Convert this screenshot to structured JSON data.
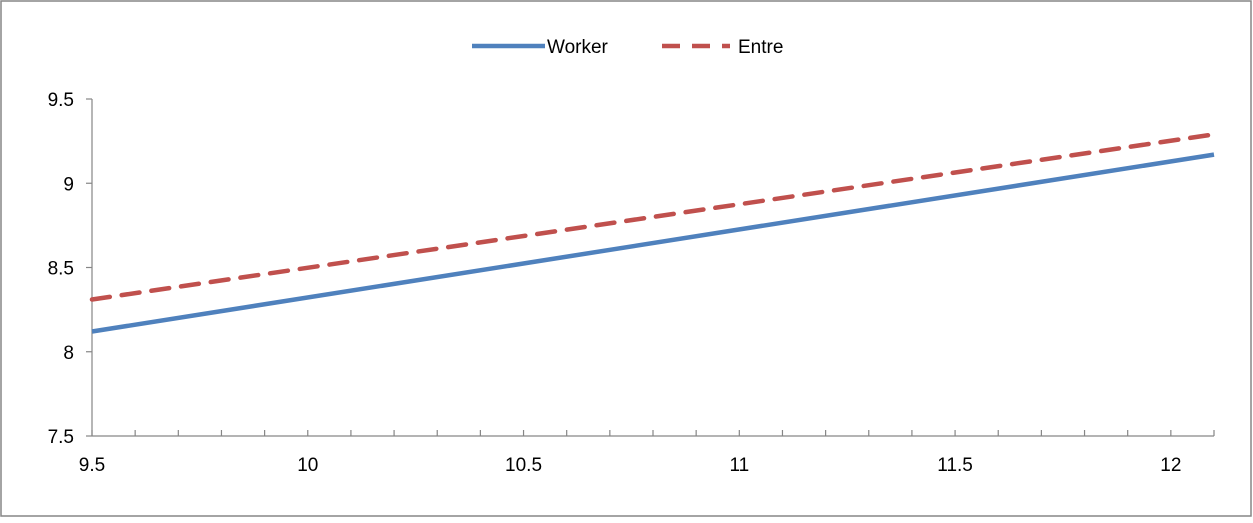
{
  "chart_data": {
    "type": "line",
    "title": "",
    "xlabel": "",
    "ylabel": "",
    "xlim": [
      9.5,
      12.1
    ],
    "ylim": [
      7.5,
      9.5
    ],
    "x_ticks": [
      9.5,
      10,
      10.5,
      11,
      11.5,
      12
    ],
    "x_tick_labels": [
      "9.5",
      "10",
      "10.5",
      "11",
      "11.5",
      "12"
    ],
    "x_minor_step": 0.1,
    "y_ticks": [
      7.5,
      8,
      8.5,
      9,
      9.5
    ],
    "y_tick_labels": [
      "7.5",
      "8",
      "8.5",
      "9",
      "9.5"
    ],
    "grid": false,
    "legend_position": "top-center",
    "series": [
      {
        "name": "Worker",
        "color": "#4f81bd",
        "style": "solid",
        "x": [
          9.5,
          12.1
        ],
        "y": [
          8.12,
          9.17
        ]
      },
      {
        "name": "Entre",
        "color": "#c0504d",
        "style": "dashed",
        "x": [
          9.5,
          12.1
        ],
        "y": [
          8.31,
          9.29
        ]
      }
    ]
  }
}
